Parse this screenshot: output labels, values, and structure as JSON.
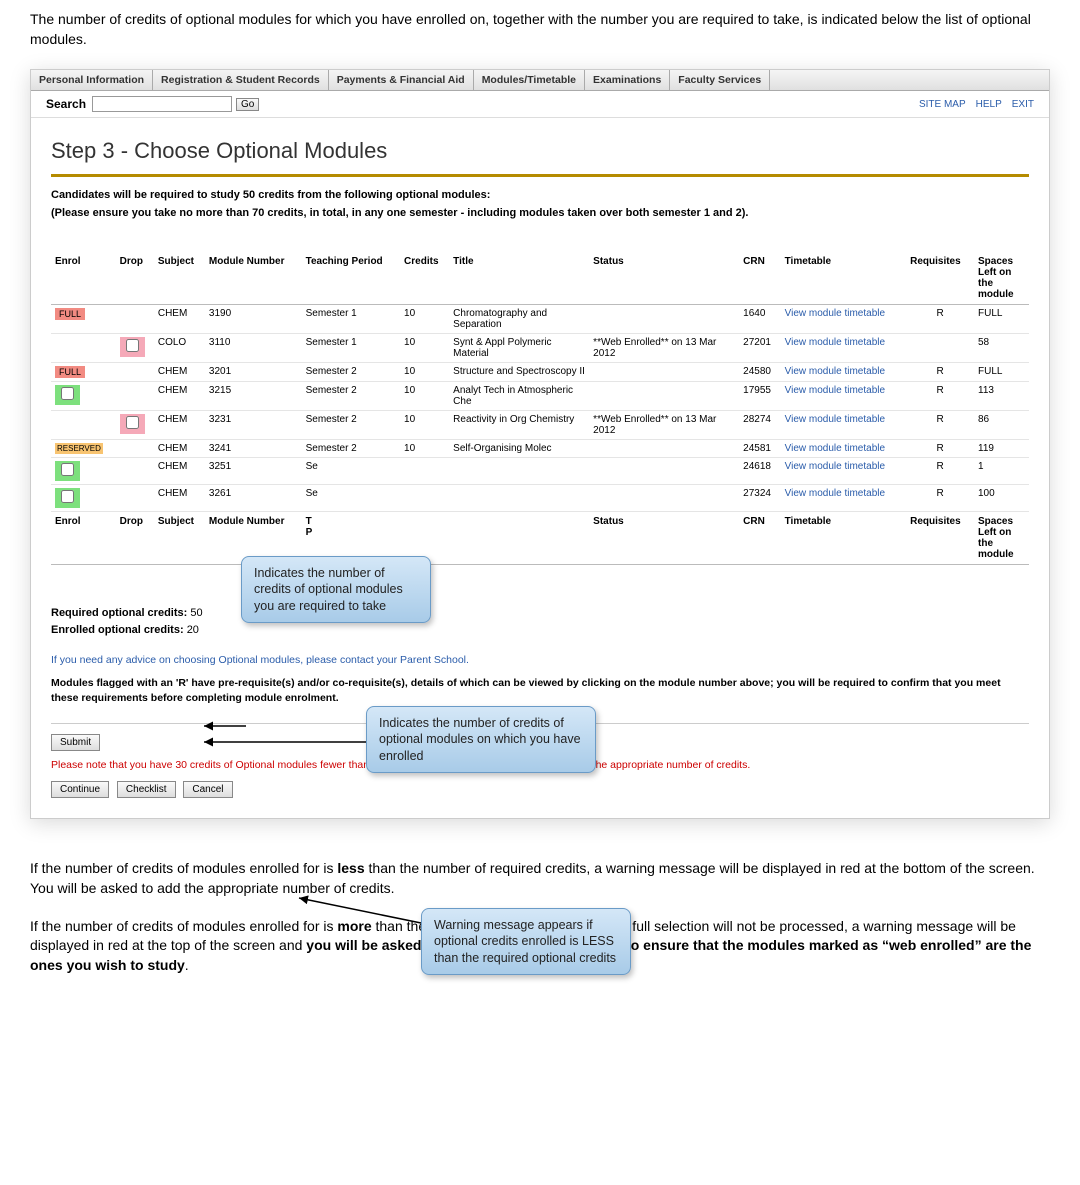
{
  "intro": "The number of credits of optional modules for which you have enrolled on, together with the number you are required to take, is indicated below the list of optional modules.",
  "tabs": [
    "Personal Information",
    "Registration & Student Records",
    "Payments & Financial Aid",
    "Modules/Timetable",
    "Examinations",
    "Faculty Services"
  ],
  "search": {
    "label": "Search",
    "go": "Go"
  },
  "topLinks": [
    "SITE MAP",
    "HELP",
    "EXIT"
  ],
  "pageTitle": "Step 3 - Choose Optional Modules",
  "instr1": "Candidates will be required to study 50 credits from the following optional modules:",
  "instr2": "(Please ensure you take no more than 70 credits, in total, in any one semester - including modules taken over both semester 1 and 2).",
  "headers": {
    "enrol": "Enrol",
    "drop": "Drop",
    "subject": "Subject",
    "moduleNo": "Module Number",
    "period": "Teaching Period",
    "credits": "Credits",
    "title": "Title",
    "status": "Status",
    "crn": "CRN",
    "timetable": "Timetable",
    "req": "Requisites",
    "spaces": "Spaces Left on the module"
  },
  "rows": [
    {
      "enrol": "FULL",
      "enrolType": "full",
      "drop": "",
      "subject": "CHEM",
      "mod": "3190",
      "period": "Semester 1",
      "credits": "10",
      "title": "Chromatography and Separation",
      "status": "",
      "crn": "1640",
      "tt": "View module timetable",
      "req": "R",
      "spaces": "FULL"
    },
    {
      "enrol": "",
      "enrolType": "",
      "drop": "pink",
      "subject": "COLO",
      "mod": "3110",
      "period": "Semester 1",
      "credits": "10",
      "title": "Synt & Appl Polymeric Material",
      "status": "**Web Enrolled** on 13 Mar 2012",
      "crn": "27201",
      "tt": "View module timetable",
      "req": "",
      "spaces": "58"
    },
    {
      "enrol": "FULL",
      "enrolType": "full",
      "drop": "",
      "subject": "CHEM",
      "mod": "3201",
      "period": "Semester 2",
      "credits": "10",
      "title": "Structure and Spectroscopy II",
      "status": "",
      "crn": "24580",
      "tt": "View module timetable",
      "req": "R",
      "spaces": "FULL"
    },
    {
      "enrol": "cb",
      "enrolType": "green",
      "drop": "",
      "subject": "CHEM",
      "mod": "3215",
      "period": "Semester 2",
      "credits": "10",
      "title": "Analyt Tech in Atmospheric Che",
      "status": "",
      "crn": "17955",
      "tt": "View module timetable",
      "req": "R",
      "spaces": "113"
    },
    {
      "enrol": "",
      "enrolType": "",
      "drop": "pink",
      "subject": "CHEM",
      "mod": "3231",
      "period": "Semester 2",
      "credits": "10",
      "title": "Reactivity in Org Chemistry",
      "status": "**Web Enrolled** on 13 Mar 2012",
      "crn": "28274",
      "tt": "View module timetable",
      "req": "R",
      "spaces": "86"
    },
    {
      "enrol": "RESERVED",
      "enrolType": "reserved",
      "drop": "",
      "subject": "CHEM",
      "mod": "3241",
      "period": "Semester 2",
      "credits": "10",
      "title": "Self-Organising Molec",
      "status": "",
      "crn": "24581",
      "tt": "View module timetable",
      "req": "R",
      "spaces": "119"
    },
    {
      "enrol": "cb",
      "enrolType": "green",
      "drop": "",
      "subject": "CHEM",
      "mod": "3251",
      "period": "Se",
      "credits": "",
      "title": "",
      "status": "",
      "crn": "24618",
      "tt": "View module timetable",
      "req": "R",
      "spaces": "1"
    },
    {
      "enrol": "cb",
      "enrolType": "green",
      "drop": "",
      "subject": "CHEM",
      "mod": "3261",
      "period": "Se",
      "credits": "",
      "title": "",
      "status": "",
      "crn": "27324",
      "tt": "View module timetable",
      "req": "R",
      "spaces": "100"
    }
  ],
  "summary": {
    "reqLabel": "Required optional credits:",
    "reqVal": "50",
    "enrLabel": "Enrolled optional credits:",
    "enrVal": "20"
  },
  "advice": "If you need any advice on choosing Optional modules, please contact your Parent School.",
  "flagNote": "Modules flagged with an 'R' have pre-requisite(s) and/or co-requisite(s), details of which can be viewed by clicking on the module number above; you will be required to confirm that you meet these requirements before completing module enrolment.",
  "submit": "Submit",
  "warning": "Please note that you have 30 credits of Optional modules fewer than required. If this is not your intention please add the appropriate number of credits.",
  "buttons": {
    "continue": "Continue",
    "checklist": "Checklist",
    "cancel": "Cancel"
  },
  "callouts": {
    "c1": "Indicates the number of credits of optional modules you are required to take",
    "c2": "Indicates the number of credits of optional modules on which you have enrolled",
    "c3": "Warning message appears if optional credits enrolled is LESS than the required optional credits"
  },
  "outro1a": "If the number of credits of modules enrolled for is ",
  "outro1b": "less",
  "outro1c": " than the number of required credits, a warning message will be displayed in red at the bottom of the screen. You will be asked to add the appropriate number of credits.",
  "outro2a": "If the number of credits of modules enrolled for is ",
  "outro2b": "more",
  "outro2c": " than the number of required credits, your full selection will not be processed, a warning message will be displayed in red at the top of the screen and ",
  "outro2d": "you will be asked to review your module choice to ensure that the modules marked as “web enrolled” are the ones you wish to study",
  "outro2e": "."
}
